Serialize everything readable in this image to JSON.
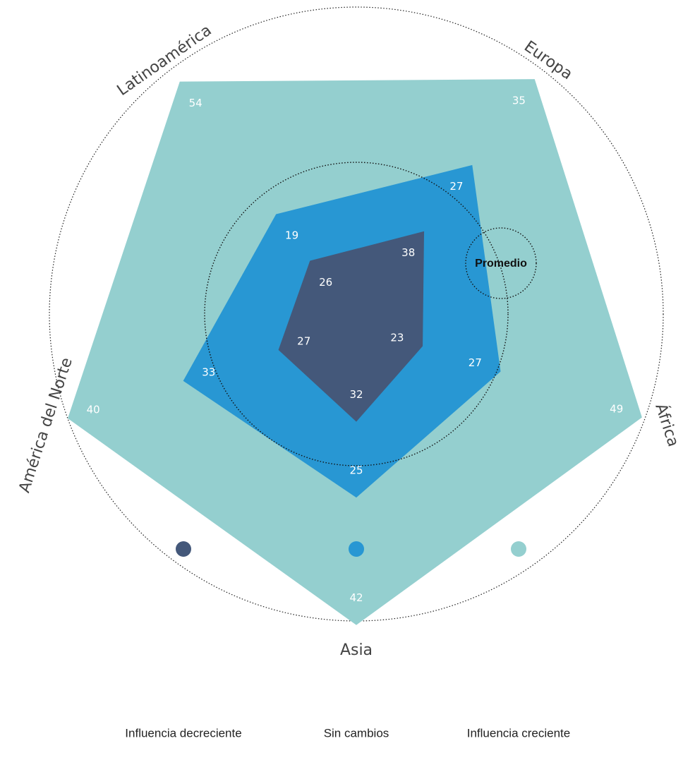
{
  "chart_data": {
    "type": "radar",
    "stacked": true,
    "categories": [
      "Latinoamérica",
      "Europa",
      "África",
      "Asia",
      "América del Norte"
    ],
    "series": [
      {
        "name": "Influencia decreciente",
        "color": "#44587a",
        "values": [
          26,
          38,
          23,
          32,
          27
        ]
      },
      {
        "name": "Sin cambios",
        "color": "#2897d3",
        "values": [
          19,
          27,
          27,
          25,
          33
        ]
      },
      {
        "name": "Influencia creciente",
        "color": "#94cfcf",
        "values": [
          54,
          35,
          49,
          42,
          40
        ]
      }
    ],
    "annotations": [
      "Promedio"
    ]
  }
}
